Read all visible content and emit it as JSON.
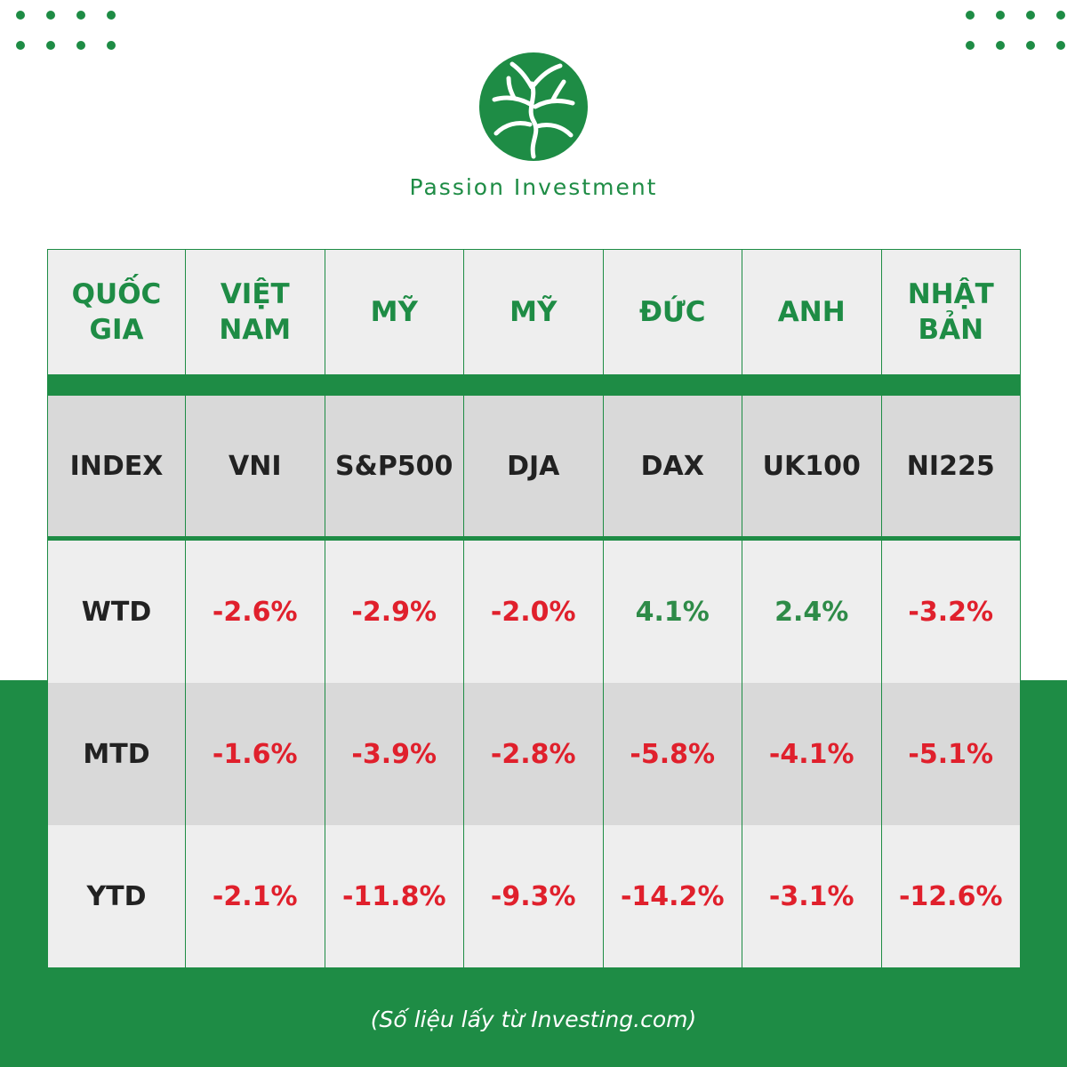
{
  "brand": {
    "name": "Passion Investment",
    "logo_icon": "tree-in-circle-logo",
    "color": "#1e8c45"
  },
  "table": {
    "header": [
      "QUỐC GIA",
      "VIỆT NAM",
      "MỸ",
      "MỸ",
      "ĐỨC",
      "ANH",
      "NHẬT BẢN"
    ],
    "index_row": [
      "INDEX",
      "VNI",
      "S&P500",
      "DJA",
      "DAX",
      "UK100",
      "NI225"
    ],
    "rows": [
      {
        "label": "WTD",
        "values": [
          "-2.6%",
          "-2.9%",
          "-2.0%",
          "4.1%",
          "2.4%",
          "-3.2%"
        ]
      },
      {
        "label": "MTD",
        "values": [
          "-1.6%",
          "-3.9%",
          "-2.8%",
          "-5.8%",
          "-4.1%",
          "-5.1%"
        ]
      },
      {
        "label": "YTD",
        "values": [
          "-2.1%",
          "-11.8%",
          "-9.3%",
          "-14.2%",
          "-3.1%",
          "-12.6%"
        ]
      }
    ],
    "negative_color": "#e0202c",
    "positive_color": "#2e8b48"
  },
  "footer": {
    "source": "(Số liệu lấy từ Investing.com)"
  }
}
